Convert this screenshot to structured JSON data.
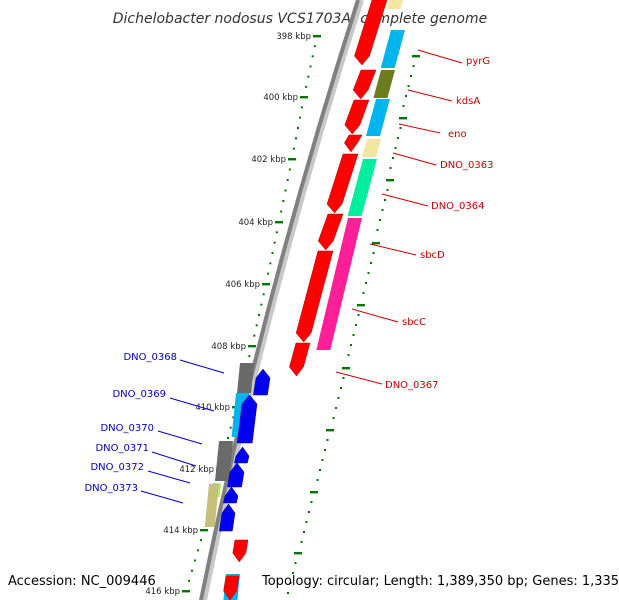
{
  "title": "Dichelobacter nodosus VCS1703A, complete genome",
  "accession": "Accession: NC_009446",
  "topology": "Topology: circular; Length: 1,389,350 bp; Genes: 1,335",
  "colors": {
    "forward_label": "#cc0000",
    "reverse_label": "#0000cc",
    "forward_arrow": "#ff0000",
    "reverse_arrow": "#0000ee",
    "backbone": "#808080",
    "tick": "#007700",
    "cog_cyan": "#00b4ee",
    "cog_olive": "#6b7d1f",
    "cog_khaki": "#f2e6a0",
    "cog_mint": "#00ee9e",
    "cog_pink": "#ff1f96",
    "cog_gray": "#6a6a6a",
    "cog_tan": "#c7c07a",
    "cog_lime": "#aaff33"
  },
  "ticks": [
    {
      "label": "398 kbp"
    },
    {
      "label": "400 kbp"
    },
    {
      "label": "402 kbp"
    },
    {
      "label": "404 kbp"
    },
    {
      "label": "406 kbp"
    },
    {
      "label": "408 kbp"
    },
    {
      "label": "410 kbp"
    },
    {
      "label": "412 kbp"
    },
    {
      "label": "414 kbp"
    },
    {
      "label": "416 kbp"
    }
  ],
  "forward_genes": [
    {
      "name": "pyrG",
      "icon": "right-arrow"
    },
    {
      "name": "kdsA",
      "icon": "right-arrow"
    },
    {
      "name": "eno",
      "icon": "right-arrow"
    },
    {
      "name": "DNO_0363",
      "icon": "right-arrow"
    },
    {
      "name": "DNO_0364",
      "icon": "right-arrow"
    },
    {
      "name": "sbcD",
      "icon": "right-arrow"
    },
    {
      "name": "sbcC",
      "icon": "right-arrow"
    },
    {
      "name": "DNO_0367",
      "icon": "right-arrow"
    }
  ],
  "reverse_genes": [
    {
      "name": "DNO_0368",
      "icon": "left-arrow"
    },
    {
      "name": "DNO_0369",
      "icon": "left-arrow"
    },
    {
      "name": "DNO_0370",
      "icon": "left-arrow"
    },
    {
      "name": "DNO_0371",
      "icon": "left-arrow"
    },
    {
      "name": "DNO_0372",
      "icon": "left-arrow"
    },
    {
      "name": "DNO_0373",
      "icon": "left-arrow"
    }
  ]
}
